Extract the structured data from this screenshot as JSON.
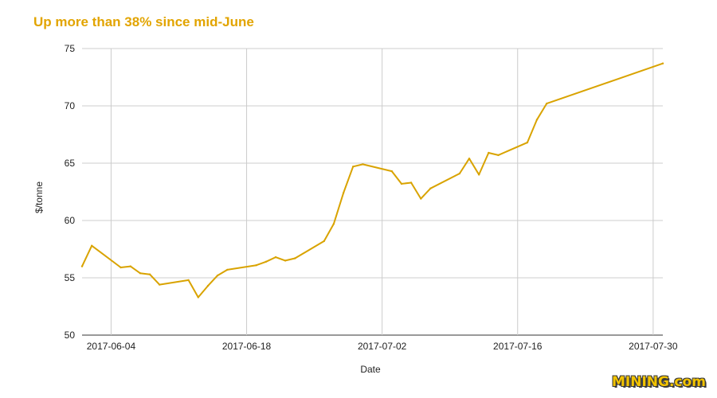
{
  "chart_data": {
    "type": "line",
    "title": "Up more than 38% since mid-June",
    "xlabel": "Date",
    "ylabel": "$/tonne",
    "ylim": [
      50,
      75
    ],
    "yticks": [
      50,
      55,
      60,
      65,
      70,
      75
    ],
    "xlim": [
      "2017-06-01",
      "2017-07-31"
    ],
    "xticks": [
      "2017-06-04",
      "2017-06-18",
      "2017-07-02",
      "2017-07-16",
      "2017-07-30"
    ],
    "grid": true,
    "series": [
      {
        "color": "#d9a300",
        "points": [
          [
            "2017-06-01",
            56.0
          ],
          [
            "2017-06-02",
            57.8
          ],
          [
            "2017-06-05",
            55.9
          ],
          [
            "2017-06-06",
            56.0
          ],
          [
            "2017-06-07",
            55.4
          ],
          [
            "2017-06-08",
            55.3
          ],
          [
            "2017-06-09",
            54.4
          ],
          [
            "2017-06-12",
            54.8
          ],
          [
            "2017-06-13",
            53.3
          ],
          [
            "2017-06-14",
            54.3
          ],
          [
            "2017-06-15",
            55.2
          ],
          [
            "2017-06-16",
            55.7
          ],
          [
            "2017-06-19",
            56.1
          ],
          [
            "2017-06-20",
            56.4
          ],
          [
            "2017-06-21",
            56.8
          ],
          [
            "2017-06-22",
            56.5
          ],
          [
            "2017-06-23",
            56.7
          ],
          [
            "2017-06-26",
            58.2
          ],
          [
            "2017-06-27",
            59.7
          ],
          [
            "2017-06-28",
            62.4
          ],
          [
            "2017-06-29",
            64.7
          ],
          [
            "2017-06-30",
            64.9
          ],
          [
            "2017-07-03",
            64.3
          ],
          [
            "2017-07-04",
            63.2
          ],
          [
            "2017-07-05",
            63.3
          ],
          [
            "2017-07-06",
            61.9
          ],
          [
            "2017-07-07",
            62.8
          ],
          [
            "2017-07-10",
            64.1
          ],
          [
            "2017-07-11",
            65.4
          ],
          [
            "2017-07-12",
            64.0
          ],
          [
            "2017-07-13",
            65.9
          ],
          [
            "2017-07-14",
            65.7
          ],
          [
            "2017-07-17",
            66.8
          ],
          [
            "2017-07-18",
            68.8
          ],
          [
            "2017-07-19",
            70.2
          ],
          [
            "2017-07-31",
            73.7
          ]
        ]
      }
    ]
  },
  "brand": {
    "logo_text": "MINING.com"
  }
}
